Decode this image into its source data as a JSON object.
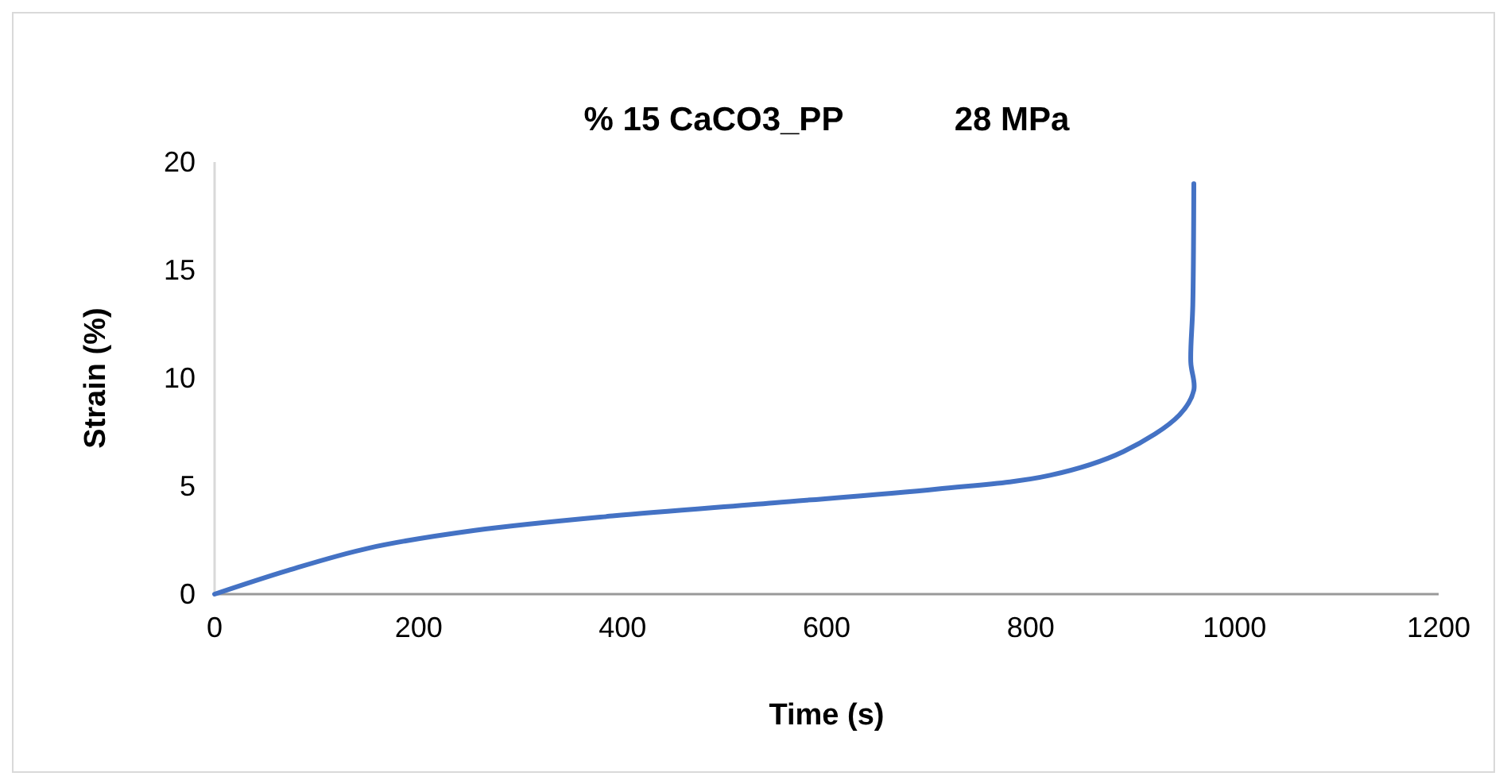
{
  "chart_data": {
    "type": "line",
    "title": "% 15 CaCO3_PP            28 MPa",
    "xlabel": "Time (s)",
    "ylabel": "Strain (%)",
    "series": [
      {
        "color": "#4472c4",
        "x": [
          0,
          72,
          151,
          255,
          390,
          549,
          708,
          819,
          891,
          946,
          960,
          957,
          959,
          960
        ],
        "values": [
          0,
          1.1,
          2.13,
          2.95,
          3.62,
          4.23,
          4.86,
          5.5,
          6.6,
          8.3,
          9.44,
          10.75,
          13.4,
          19
        ]
      }
    ],
    "xlim": [
      0,
      1200
    ],
    "xticks": [
      0,
      200,
      400,
      600,
      800,
      1000,
      1200
    ],
    "ylim": [
      0,
      20
    ],
    "yticks": [
      0,
      5,
      10,
      15,
      20
    ],
    "marker": "none",
    "line_style": "solid"
  }
}
